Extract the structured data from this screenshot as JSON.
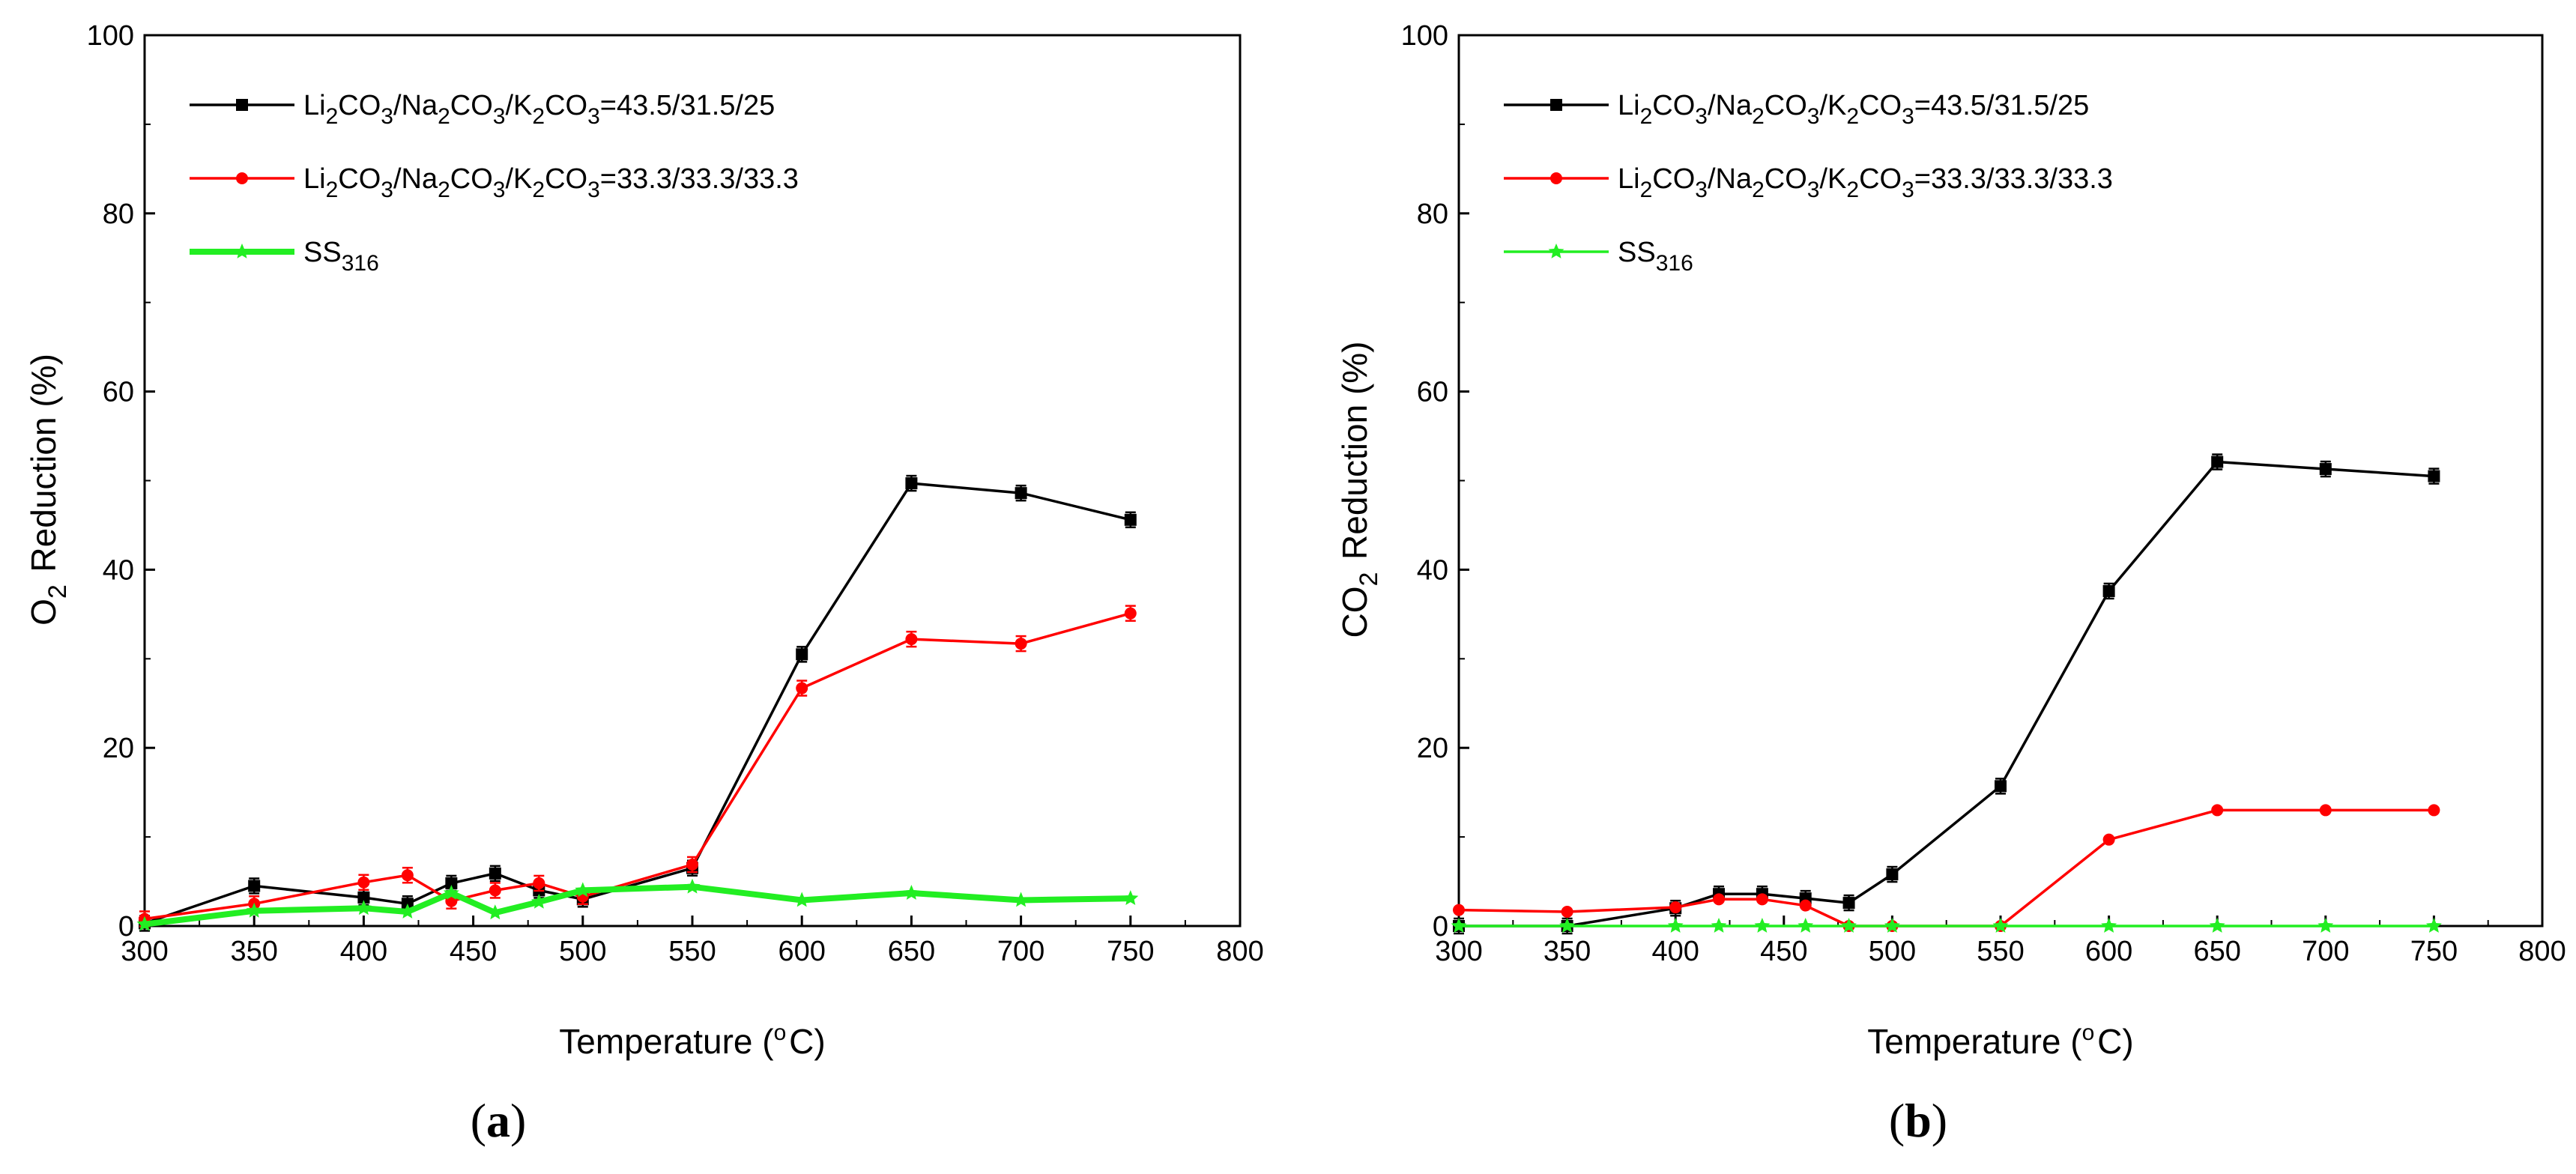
{
  "chart_data": [
    {
      "type": "line",
      "panel_label": "(a)",
      "xlabel": "Temperature (°C)",
      "ylabel": "O2 Reduction (%)",
      "xlim": [
        300,
        800
      ],
      "ylim": [
        0,
        100
      ],
      "xticks": [
        300,
        350,
        400,
        450,
        500,
        550,
        600,
        650,
        700,
        750,
        800
      ],
      "yticks": [
        0,
        20,
        40,
        60,
        80,
        100
      ],
      "legend_position": "top-left",
      "series": [
        {
          "name": "Li2CO3/Na2CO3/K2CO3=43.5/31.5/25",
          "color": "#000000",
          "marker": "square",
          "x": [
            300,
            350,
            400,
            420,
            440,
            460,
            480,
            500,
            550,
            600,
            650,
            700,
            750
          ],
          "y": [
            0.3,
            4.5,
            3.2,
            2.5,
            4.8,
            5.9,
            4.0,
            3.0,
            6.5,
            30.5,
            49.7,
            48.6,
            45.6
          ],
          "error_bars": true
        },
        {
          "name": "Li2CO3/Na2CO3/K2CO3=33.3/33.3/33.3",
          "color": "#ff0000",
          "marker": "circle",
          "x": [
            300,
            350,
            400,
            420,
            440,
            460,
            480,
            500,
            550,
            600,
            650,
            700,
            750
          ],
          "y": [
            0.8,
            2.5,
            4.9,
            5.7,
            2.8,
            4.0,
            4.8,
            3.3,
            6.9,
            26.7,
            32.2,
            31.7,
            35.1
          ],
          "error_bars": true
        },
        {
          "name": "SS316",
          "color": "#22ee22",
          "marker": "star",
          "x": [
            300,
            350,
            400,
            420,
            440,
            460,
            480,
            500,
            550,
            600,
            650,
            700,
            750
          ],
          "y": [
            0.2,
            1.7,
            2.0,
            1.6,
            3.7,
            1.5,
            2.7,
            4.0,
            4.4,
            2.9,
            3.7,
            2.9,
            3.1
          ],
          "error_bars": false
        }
      ]
    },
    {
      "type": "line",
      "panel_label": "(b)",
      "xlabel": "Temperature (°C)",
      "ylabel": "CO2 Reduction (%)",
      "xlim": [
        300,
        800
      ],
      "ylim": [
        0,
        100
      ],
      "xticks": [
        300,
        350,
        400,
        450,
        500,
        550,
        600,
        650,
        700,
        750,
        800
      ],
      "yticks": [
        0,
        20,
        40,
        60,
        80,
        100
      ],
      "legend_position": "top-left",
      "series": [
        {
          "name": "Li2CO3/Na2CO3/K2CO3=43.5/31.5/25",
          "color": "#000000",
          "marker": "square",
          "x": [
            300,
            350,
            400,
            420,
            440,
            460,
            480,
            500,
            550,
            600,
            650,
            700,
            750
          ],
          "y": [
            0.0,
            0.0,
            2.0,
            3.6,
            3.6,
            3.1,
            2.6,
            5.8,
            15.7,
            37.6,
            52.1,
            51.3,
            50.5
          ],
          "error_bars": true
        },
        {
          "name": "Li2CO3/Na2CO3/K2CO3=33.3/33.3/33.3",
          "color": "#ff0000",
          "marker": "circle",
          "x": [
            300,
            350,
            400,
            420,
            440,
            460,
            480,
            500,
            550,
            600,
            650,
            700,
            750
          ],
          "y": [
            1.8,
            1.6,
            2.1,
            3.0,
            3.0,
            2.3,
            0.0,
            0.0,
            0.0,
            9.7,
            13.0,
            13.0,
            13.0
          ],
          "error_bars": false
        },
        {
          "name": "SS316",
          "color": "#22ee22",
          "marker": "star",
          "x": [
            300,
            350,
            400,
            420,
            440,
            460,
            480,
            500,
            550,
            600,
            650,
            700,
            750
          ],
          "y": [
            0,
            0,
            0,
            0,
            0,
            0,
            0,
            0,
            0,
            0,
            0,
            0,
            0
          ],
          "error_bars": false
        }
      ]
    }
  ]
}
